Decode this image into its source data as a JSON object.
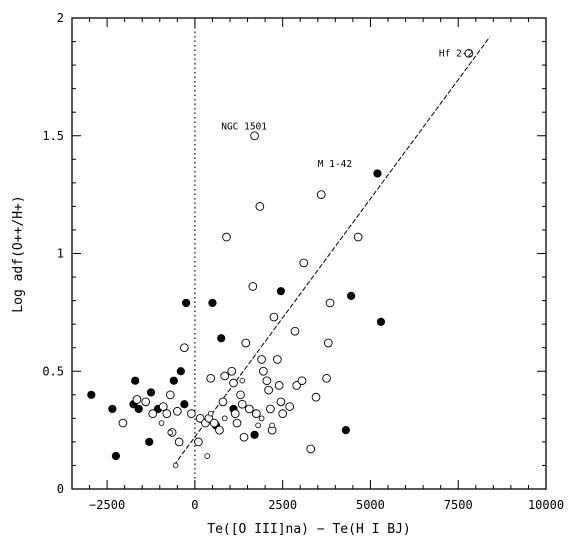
{
  "chart_data": {
    "type": "scatter",
    "xlabel": "Te([O III]na) − Te(H I BJ)",
    "ylabel": "Log adf(O++/H+)",
    "xlim": [
      -3500,
      10000
    ],
    "ylim": [
      0,
      2
    ],
    "xticks": [
      -2500,
      0,
      2500,
      5000,
      7500,
      10000
    ],
    "xtick_labels": [
      "−2500",
      "0",
      "2500",
      "5000",
      "7500",
      "10000"
    ],
    "yticks": [
      0,
      0.5,
      1,
      1.5,
      2
    ],
    "ytick_labels": [
      "0",
      "0.5",
      "1",
      "1.5",
      "2"
    ],
    "grid": false,
    "reference_line": {
      "style": "dotted",
      "x": 0
    },
    "fit_line": {
      "style": "dashed",
      "from": [
        -600,
        0.1
      ],
      "to": [
        8400,
        1.92
      ]
    },
    "series": [
      {
        "marker": "filled-circle",
        "points": [
          [
            -2950,
            0.4
          ],
          [
            -2350,
            0.34
          ],
          [
            -2250,
            0.14
          ],
          [
            -1700,
            0.46
          ],
          [
            -1750,
            0.36
          ],
          [
            -1600,
            0.34
          ],
          [
            -1250,
            0.41
          ],
          [
            -1300,
            0.2
          ],
          [
            -1050,
            0.34
          ],
          [
            -600,
            0.46
          ],
          [
            -400,
            0.5
          ],
          [
            -250,
            0.79
          ],
          [
            -300,
            0.36
          ],
          [
            500,
            0.79
          ],
          [
            600,
            0.27
          ],
          [
            750,
            0.64
          ],
          [
            1100,
            0.34
          ],
          [
            1700,
            0.23
          ],
          [
            2450,
            0.84
          ],
          [
            4300,
            0.25
          ],
          [
            4450,
            0.82
          ],
          [
            5200,
            1.34
          ],
          [
            5300,
            0.71
          ]
        ]
      },
      {
        "marker": "open-circle",
        "points": [
          [
            -2050,
            0.28
          ],
          [
            -1650,
            0.38
          ],
          [
            -1400,
            0.37
          ],
          [
            -1200,
            0.32
          ],
          [
            -900,
            0.35
          ],
          [
            -800,
            0.32
          ],
          [
            -700,
            0.4
          ],
          [
            -650,
            0.24
          ],
          [
            -500,
            0.33
          ],
          [
            -450,
            0.2
          ],
          [
            -300,
            0.6
          ],
          [
            -100,
            0.32
          ],
          [
            100,
            0.2
          ],
          [
            150,
            0.3
          ],
          [
            300,
            0.28
          ],
          [
            400,
            0.3
          ],
          [
            450,
            0.47
          ],
          [
            550,
            0.28
          ],
          [
            700,
            0.25
          ],
          [
            800,
            0.37
          ],
          [
            850,
            0.48
          ],
          [
            900,
            1.07
          ],
          [
            1050,
            0.5
          ],
          [
            1100,
            0.45
          ],
          [
            1150,
            0.32
          ],
          [
            1200,
            0.28
          ],
          [
            1300,
            0.4
          ],
          [
            1350,
            0.36
          ],
          [
            1400,
            0.22
          ],
          [
            1450,
            0.62
          ],
          [
            1550,
            0.34
          ],
          [
            1650,
            0.86
          ],
          [
            1700,
            1.5
          ],
          [
            1750,
            0.32
          ],
          [
            1850,
            1.2
          ],
          [
            1900,
            0.55
          ],
          [
            1950,
            0.5
          ],
          [
            2050,
            0.46
          ],
          [
            2100,
            0.42
          ],
          [
            2150,
            0.34
          ],
          [
            2200,
            0.25
          ],
          [
            2250,
            0.73
          ],
          [
            2350,
            0.55
          ],
          [
            2400,
            0.44
          ],
          [
            2450,
            0.37
          ],
          [
            2500,
            0.32
          ],
          [
            2700,
            0.35
          ],
          [
            2850,
            0.67
          ],
          [
            2900,
            0.44
          ],
          [
            3050,
            0.46
          ],
          [
            3100,
            0.96
          ],
          [
            3300,
            0.17
          ],
          [
            3450,
            0.39
          ],
          [
            3600,
            1.25
          ],
          [
            3750,
            0.47
          ],
          [
            3800,
            0.62
          ],
          [
            3850,
            0.79
          ],
          [
            4650,
            1.07
          ],
          [
            7800,
            1.85
          ]
        ]
      },
      {
        "marker": "small-open-circle",
        "points": [
          [
            -950,
            0.28
          ],
          [
            -700,
            0.24
          ],
          [
            -550,
            0.1
          ],
          [
            350,
            0.14
          ],
          [
            450,
            0.32
          ],
          [
            850,
            0.3
          ],
          [
            1350,
            0.46
          ],
          [
            1800,
            0.27
          ],
          [
            1900,
            0.3
          ],
          [
            2200,
            0.27
          ]
        ]
      }
    ],
    "annotations": [
      {
        "text": "Hf 2-2",
        "x": 6950,
        "y": 1.85
      },
      {
        "text": "NGC 1501",
        "x": 750,
        "y": 1.54
      },
      {
        "text": "M 1-42",
        "x": 3500,
        "y": 1.38
      }
    ]
  }
}
